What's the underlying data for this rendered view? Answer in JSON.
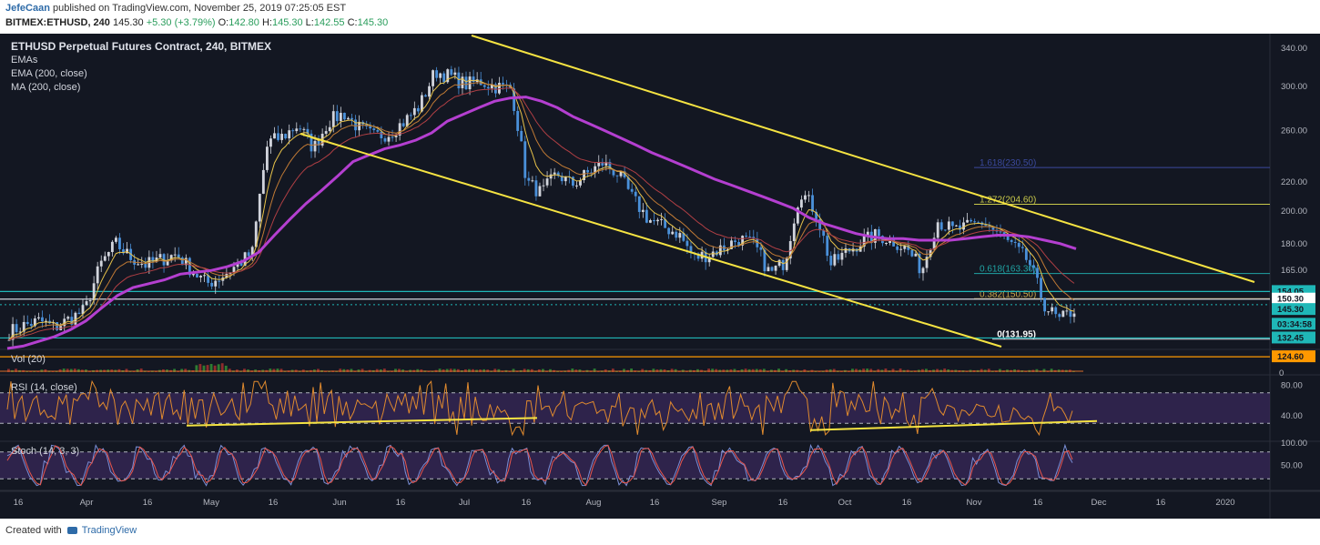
{
  "header": {
    "author": "JefeCaan",
    "published_text": "published on TradingView.com, November 25, 2019 07:25:05 EST",
    "symbol": "BITMEX:ETHUSD, 240",
    "last": "145.30",
    "change": "+5.30 (+3.79%)",
    "o_label": "O:",
    "o": "142.80",
    "h_label": "H:",
    "h": "145.30",
    "l_label": "L:",
    "l": "142.55",
    "c_label": "C:",
    "c": "145.30"
  },
  "chart_title": "ETHUSD Perpetual Futures Contract, 240, BITMEX",
  "indicators": [
    "EMAs",
    "EMA (200, close)",
    "MA (200, close)"
  ],
  "panes": {
    "volume": "Vol (20)",
    "rsi": "RSI (14, close)",
    "stoch": "Stoch (14, 3, 3)"
  },
  "footer": {
    "created": "Created with",
    "brand": "TradingView"
  },
  "colors": {
    "background": "#131722",
    "candle_up": "#d1d4dc",
    "candle_down": "#4a90d9",
    "ema_fast": "#e8c34a",
    "ema_mid": "#c07a35",
    "ema_slow": "#b03f44",
    "ma200": "#b43fd0",
    "trendline": "#f5e342",
    "rsi_line": "#e08a2e",
    "stoch_k": "#7a8ed6",
    "stoch_d": "#e8554b"
  },
  "chart_data": [
    {
      "type": "line",
      "pane": "price",
      "title": "ETHUSD Perpetual Futures Contract, 240, BITMEX",
      "x_tick_labels": [
        "16",
        "Apr",
        "16",
        "May",
        "16",
        "Jun",
        "16",
        "Jul",
        "16",
        "Aug",
        "16",
        "Sep",
        "16",
        "Oct",
        "16",
        "Nov",
        "16",
        "Dec",
        "16",
        "2020"
      ],
      "y_tick_labels": [
        "340.00",
        "300.00",
        "260.00",
        "220.00",
        "200.00",
        "180.00",
        "165.00"
      ],
      "y_scale": "log",
      "ylim": [
        128,
        350
      ],
      "series": [
        {
          "values": [
            135,
            138,
            140,
            137,
            141,
            145,
            168,
            180,
            172,
            168,
            171,
            174,
            165,
            158,
            162,
            168,
            175,
            250,
            255,
            265,
            245,
            268,
            275,
            262,
            255,
            258,
            268,
            282,
            315,
            310,
            302,
            305,
            300,
            298,
            220,
            212,
            226,
            218,
            226,
            234,
            226,
            208,
            195,
            190,
            186,
            172,
            174,
            178,
            183,
            179,
            163,
            170,
            214,
            200,
            168,
            175,
            181,
            185,
            182,
            177,
            165,
            194,
            188,
            190,
            193,
            186,
            178,
            170,
            148,
            140,
            145.3
          ]
        },
        {
          "name": "EMA (200, close)",
          "values": [
            128,
            129,
            131,
            133,
            136,
            140,
            146,
            152,
            156,
            158,
            160,
            163,
            164,
            165,
            167,
            170,
            175,
            185,
            195,
            205,
            214,
            224,
            235,
            240,
            245,
            248,
            252,
            258,
            268,
            274,
            280,
            286,
            289,
            290,
            286,
            280,
            272,
            266,
            260,
            254,
            248,
            242,
            237,
            232,
            227,
            222,
            218,
            214,
            210,
            206,
            202,
            196,
            192,
            189,
            186,
            184,
            183,
            183,
            182,
            182,
            182,
            183,
            184,
            185,
            185,
            184,
            182,
            180,
            177
          ]
        }
      ],
      "annotations": [
        {
          "label": "1.618(230.50)",
          "y": 230.5
        },
        {
          "label": "1.272(204.60)",
          "y": 204.6
        },
        {
          "label": "0.618(163.30)",
          "y": 163.3
        },
        {
          "label": "0.382(150.50)",
          "y": 150.5
        },
        {
          "label": "0(131.95)",
          "y": 131.95
        }
      ],
      "price_labels": [
        {
          "text": "154.05",
          "y": 154.05,
          "color": "#1fb7b7"
        },
        {
          "text": "150.30",
          "y": 150.3,
          "color": "#ffffff"
        },
        {
          "text": "145.30",
          "y": 145.3,
          "color": "#1fb7b7"
        },
        {
          "text": "03:34:58",
          "y": 138.5,
          "color": "#1fb7b7"
        },
        {
          "text": "132.45",
          "y": 132.45,
          "color": "#1fb7b7"
        },
        {
          "text": "124.60",
          "y": 124.6,
          "color": "#ff9800"
        }
      ]
    },
    {
      "type": "bar",
      "pane": "volume",
      "title": "Vol (20)",
      "y_tick_labels": [
        "0"
      ]
    },
    {
      "type": "line",
      "pane": "rsi",
      "title": "RSI (14, close)",
      "y_tick_labels": [
        "80.00",
        "40.00"
      ],
      "ylim": [
        10,
        90
      ],
      "bands": [
        70,
        30
      ]
    },
    {
      "type": "line",
      "pane": "stochastic",
      "title": "Stoch (14, 3, 3)",
      "y_tick_labels": [
        "100.00",
        "50.00"
      ],
      "ylim": [
        0,
        100
      ],
      "bands": [
        80,
        20
      ]
    }
  ]
}
